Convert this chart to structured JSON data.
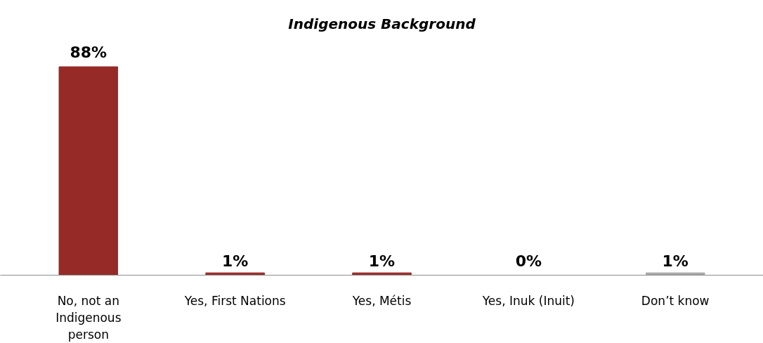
{
  "chart_data": {
    "type": "bar",
    "title": "Indigenous Background",
    "categories": [
      "No, not an Indigenous person",
      "Yes, First Nations",
      "Yes, Métis",
      "Yes, Inuk (Inuit)",
      "Don’t know"
    ],
    "values": [
      88,
      1,
      1,
      0,
      1
    ],
    "value_labels": [
      "88%",
      "1%",
      "1%",
      "0%",
      "1%"
    ],
    "colors": [
      "#962a27",
      "#962a27",
      "#962a27",
      "#962a27",
      "#a6a6a6"
    ],
    "grid": false
  }
}
